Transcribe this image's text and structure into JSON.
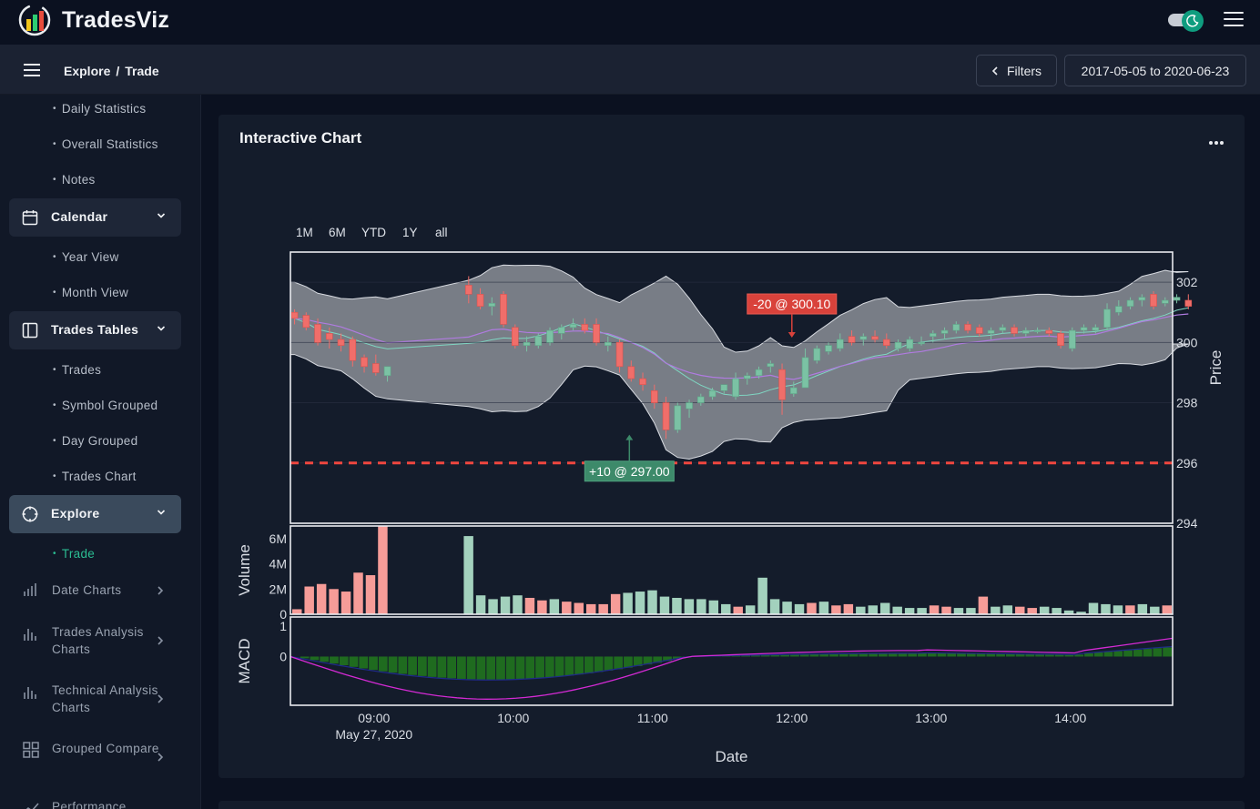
{
  "app": {
    "brand": "TradesViz"
  },
  "header": {
    "theme_toggle": "dark-mode",
    "menu_icon": "hamburger-icon"
  },
  "subheader": {
    "breadcrumb": [
      "Explore",
      "Trade"
    ],
    "breadcrumb_sep": "/",
    "filters_label": "Filters",
    "date_range": "2017-05-05 to 2020-06-23"
  },
  "sidebar": {
    "top_subitems": [
      "Daily Statistics",
      "Overall Statistics",
      "Notes"
    ],
    "groups": [
      {
        "label": "Calendar",
        "icon": "calendar-icon",
        "subitems": [
          "Year View",
          "Month View"
        ]
      },
      {
        "label": "Trades Tables",
        "icon": "table-icon",
        "subitems": [
          "Trades",
          "Symbol Grouped",
          "Day Grouped",
          "Trades Chart"
        ]
      },
      {
        "label": "Explore",
        "icon": "compass-icon",
        "subitems": [
          "Trade"
        ],
        "active": true
      }
    ],
    "items": [
      {
        "label": "Date Charts",
        "icon": "bar-chart-icon"
      },
      {
        "label": "Trades Analysis Charts",
        "icon": "bar-chart-icon"
      },
      {
        "label": "Technical Analysis Charts",
        "icon": "bar-chart-icon"
      },
      {
        "label": "Grouped Compare",
        "icon": "grid-icon"
      },
      {
        "label": "Performance",
        "icon": "trend-icon"
      }
    ]
  },
  "card": {
    "title": "Interactive Chart"
  },
  "range_buttons": [
    "1M",
    "6M",
    "YTD",
    "1Y",
    "all"
  ],
  "chart_data": {
    "type": "candlestick",
    "title": "",
    "xlabel": "Date",
    "x_ticks": [
      "09:00",
      "10:00",
      "11:00",
      "12:00",
      "13:00",
      "14:00"
    ],
    "x_tick_sub": "May 27, 2020",
    "x_range": [
      "08:24",
      "14:44"
    ],
    "price": {
      "ylabel": "Price",
      "ylim": [
        294,
        303
      ],
      "y_ticks": [
        294,
        296,
        298,
        300,
        302
      ],
      "candles_ohlc": [
        [
          301.0,
          301.1,
          300.6,
          300.8
        ],
        [
          300.9,
          301.0,
          300.4,
          300.5
        ],
        [
          300.6,
          300.8,
          299.9,
          300.0
        ],
        [
          300.3,
          300.5,
          299.8,
          300.1
        ],
        [
          300.1,
          300.3,
          299.7,
          299.9
        ],
        [
          300.1,
          300.2,
          299.2,
          299.4
        ],
        [
          299.5,
          299.6,
          299.0,
          299.2
        ],
        [
          299.3,
          299.6,
          298.9,
          299.0
        ],
        [
          298.9,
          299.2,
          298.7,
          299.2
        ],
        [
          301.9,
          302.2,
          301.3,
          301.6
        ],
        [
          301.6,
          301.8,
          301.1,
          301.2
        ],
        [
          301.2,
          301.5,
          300.9,
          301.3
        ],
        [
          301.6,
          301.7,
          300.5,
          300.6
        ],
        [
          300.5,
          300.6,
          299.8,
          299.9
        ],
        [
          299.9,
          300.2,
          299.7,
          300.0
        ],
        [
          299.9,
          300.3,
          299.8,
          300.2
        ],
        [
          300.0,
          300.5,
          299.9,
          300.4
        ],
        [
          300.3,
          300.6,
          300.1,
          300.5
        ],
        [
          300.5,
          300.8,
          300.4,
          300.6
        ],
        [
          300.6,
          300.8,
          300.3,
          300.4
        ],
        [
          300.6,
          300.8,
          299.9,
          300.0
        ],
        [
          299.9,
          300.2,
          299.7,
          300.0
        ],
        [
          300.0,
          300.1,
          299.0,
          299.2
        ],
        [
          299.2,
          299.4,
          298.7,
          298.8
        ],
        [
          298.8,
          299.0,
          298.4,
          298.6
        ],
        [
          298.4,
          298.6,
          297.8,
          298.0
        ],
        [
          298.0,
          298.2,
          296.8,
          297.1
        ],
        [
          297.1,
          298.0,
          297.0,
          297.9
        ],
        [
          297.8,
          298.1,
          297.5,
          298.0
        ],
        [
          298.0,
          298.3,
          297.9,
          298.2
        ],
        [
          298.2,
          298.5,
          298.1,
          298.4
        ],
        [
          298.4,
          298.6,
          298.3,
          298.6
        ],
        [
          298.2,
          299.0,
          298.1,
          298.8
        ],
        [
          298.8,
          299.0,
          298.6,
          298.9
        ],
        [
          298.9,
          299.2,
          298.8,
          299.1
        ],
        [
          299.2,
          299.4,
          299.0,
          299.3
        ],
        [
          299.1,
          299.3,
          297.6,
          298.1
        ],
        [
          298.3,
          298.7,
          298.2,
          298.5
        ],
        [
          298.5,
          299.8,
          298.5,
          299.5
        ],
        [
          299.4,
          299.9,
          299.3,
          299.8
        ],
        [
          299.7,
          300.0,
          299.6,
          299.9
        ],
        [
          299.8,
          300.3,
          299.7,
          300.1
        ],
        [
          300.2,
          300.4,
          299.9,
          300.0
        ],
        [
          300.1,
          300.3,
          299.9,
          300.2
        ],
        [
          300.2,
          300.4,
          300.0,
          300.1
        ],
        [
          300.1,
          300.3,
          299.8,
          299.9
        ],
        [
          299.8,
          300.1,
          299.7,
          300.0
        ],
        [
          299.8,
          300.2,
          299.7,
          300.1
        ],
        [
          300.0,
          300.2,
          299.9,
          300.0
        ],
        [
          300.2,
          300.4,
          300.0,
          300.3
        ],
        [
          300.3,
          300.5,
          300.1,
          300.4
        ],
        [
          300.4,
          300.7,
          300.3,
          300.6
        ],
        [
          300.6,
          300.7,
          300.3,
          300.4
        ],
        [
          300.5,
          300.6,
          300.2,
          300.3
        ],
        [
          300.3,
          300.5,
          300.1,
          300.4
        ],
        [
          300.4,
          300.6,
          300.3,
          300.5
        ],
        [
          300.5,
          300.6,
          300.2,
          300.3
        ],
        [
          300.3,
          300.5,
          300.2,
          300.4
        ],
        [
          300.4,
          300.5,
          300.3,
          300.4
        ],
        [
          300.4,
          300.5,
          300.2,
          300.3
        ],
        [
          300.3,
          300.4,
          299.8,
          299.9
        ],
        [
          299.8,
          300.5,
          299.7,
          300.4
        ],
        [
          300.4,
          300.6,
          300.3,
          300.5
        ],
        [
          300.4,
          300.6,
          300.3,
          300.5
        ],
        [
          300.5,
          301.3,
          300.4,
          301.1
        ],
        [
          301.0,
          301.4,
          300.9,
          301.2
        ],
        [
          301.2,
          301.5,
          301.1,
          301.4
        ],
        [
          301.4,
          301.6,
          301.2,
          301.5
        ],
        [
          301.6,
          301.7,
          301.1,
          301.2
        ],
        [
          301.3,
          301.5,
          301.2,
          301.4
        ],
        [
          301.4,
          301.6,
          301.3,
          301.5
        ],
        [
          301.4,
          301.6,
          301.1,
          301.2
        ]
      ],
      "support_line": 296.0,
      "annotations": [
        {
          "text": "-20 @ 300.10",
          "side": "sell",
          "time": "12:00",
          "price": 300.1
        },
        {
          "text": "+10 @ 297.00",
          "side": "buy",
          "time": "10:50",
          "price": 297.0
        }
      ]
    },
    "volume": {
      "ylabel": "Volume",
      "y_ticks": [
        "0",
        "2M",
        "4M",
        "6M"
      ],
      "ylim": [
        0,
        7000000
      ],
      "values": [
        0.4,
        2.2,
        2.4,
        2.0,
        1.8,
        3.3,
        3.1,
        7.0,
        0,
        0,
        0,
        0,
        0,
        0,
        6.2,
        1.5,
        1.2,
        1.4,
        1.5,
        1.3,
        1.1,
        1.2,
        1.0,
        0.9,
        0.8,
        0.8,
        1.6,
        1.7,
        1.8,
        1.9,
        1.4,
        1.3,
        1.2,
        1.2,
        1.1,
        0.8,
        0.6,
        0.7,
        2.9,
        1.2,
        1.0,
        0.8,
        0.9,
        1.0,
        0.7,
        0.8,
        0.6,
        0.7,
        0.9,
        0.6,
        0.5,
        0.5,
        0.7,
        0.6,
        0.5,
        0.5,
        1.4,
        0.6,
        0.7,
        0.6,
        0.5,
        0.6,
        0.5,
        0.3,
        0.2,
        0.9,
        0.8,
        0.7,
        0.7,
        0.8,
        0.6,
        0.7
      ]
    },
    "macd": {
      "ylabel": "MACD",
      "y_ticks": [
        0,
        1
      ],
      "ylim": [
        -1.6,
        1.3
      ]
    }
  }
}
